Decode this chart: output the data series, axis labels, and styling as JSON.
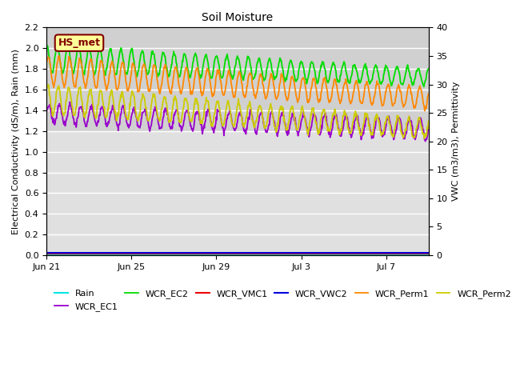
{
  "title": "Soil Moisture",
  "ylabel_left": "Electrical Conductivity (dS/m), Rain (mm)",
  "ylabel_right": "VWC (m3/m3), Permittivity",
  "ylim_left": [
    0.0,
    2.2
  ],
  "ylim_right": [
    0,
    40
  ],
  "yticks_left": [
    0.0,
    0.2,
    0.4,
    0.6,
    0.8,
    1.0,
    1.2,
    1.4,
    1.6,
    1.8,
    2.0,
    2.2
  ],
  "yticks_right": [
    0,
    5,
    10,
    15,
    20,
    25,
    30,
    35,
    40
  ],
  "xtick_labels": [
    "Jun 21",
    "Jun 25",
    "Jun 29",
    "Jul 3",
    "Jul 7"
  ],
  "xtick_positions": [
    0,
    4,
    8,
    12,
    16
  ],
  "xlim": [
    0,
    18
  ],
  "n_points": 800,
  "total_days": 18,
  "colors": {
    "Rain": "#00e5e5",
    "WCR_EC1": "#9900cc",
    "WCR_EC2": "#00dd00",
    "WCR_VMC1": "#ee0000",
    "WCR_VWC2": "#0000dd",
    "WCR_Perm1": "#ff8800",
    "WCR_Perm2": "#cccc00"
  },
  "hs_met_box": {
    "text": "HS_met",
    "facecolor": "#ffff99",
    "edgecolor": "#800000",
    "textcolor": "#800000",
    "fontsize": 9
  },
  "background_color": "#ffffff",
  "plot_bg_color": "#e0e0e0",
  "shaded_band_color": "#d0d0d0",
  "grid_color": "#ffffff",
  "figsize": [
    6.4,
    4.8
  ],
  "dpi": 100,
  "title_fontsize": 10,
  "axis_fontsize": 8,
  "tick_fontsize": 8,
  "legend_fontsize": 8
}
